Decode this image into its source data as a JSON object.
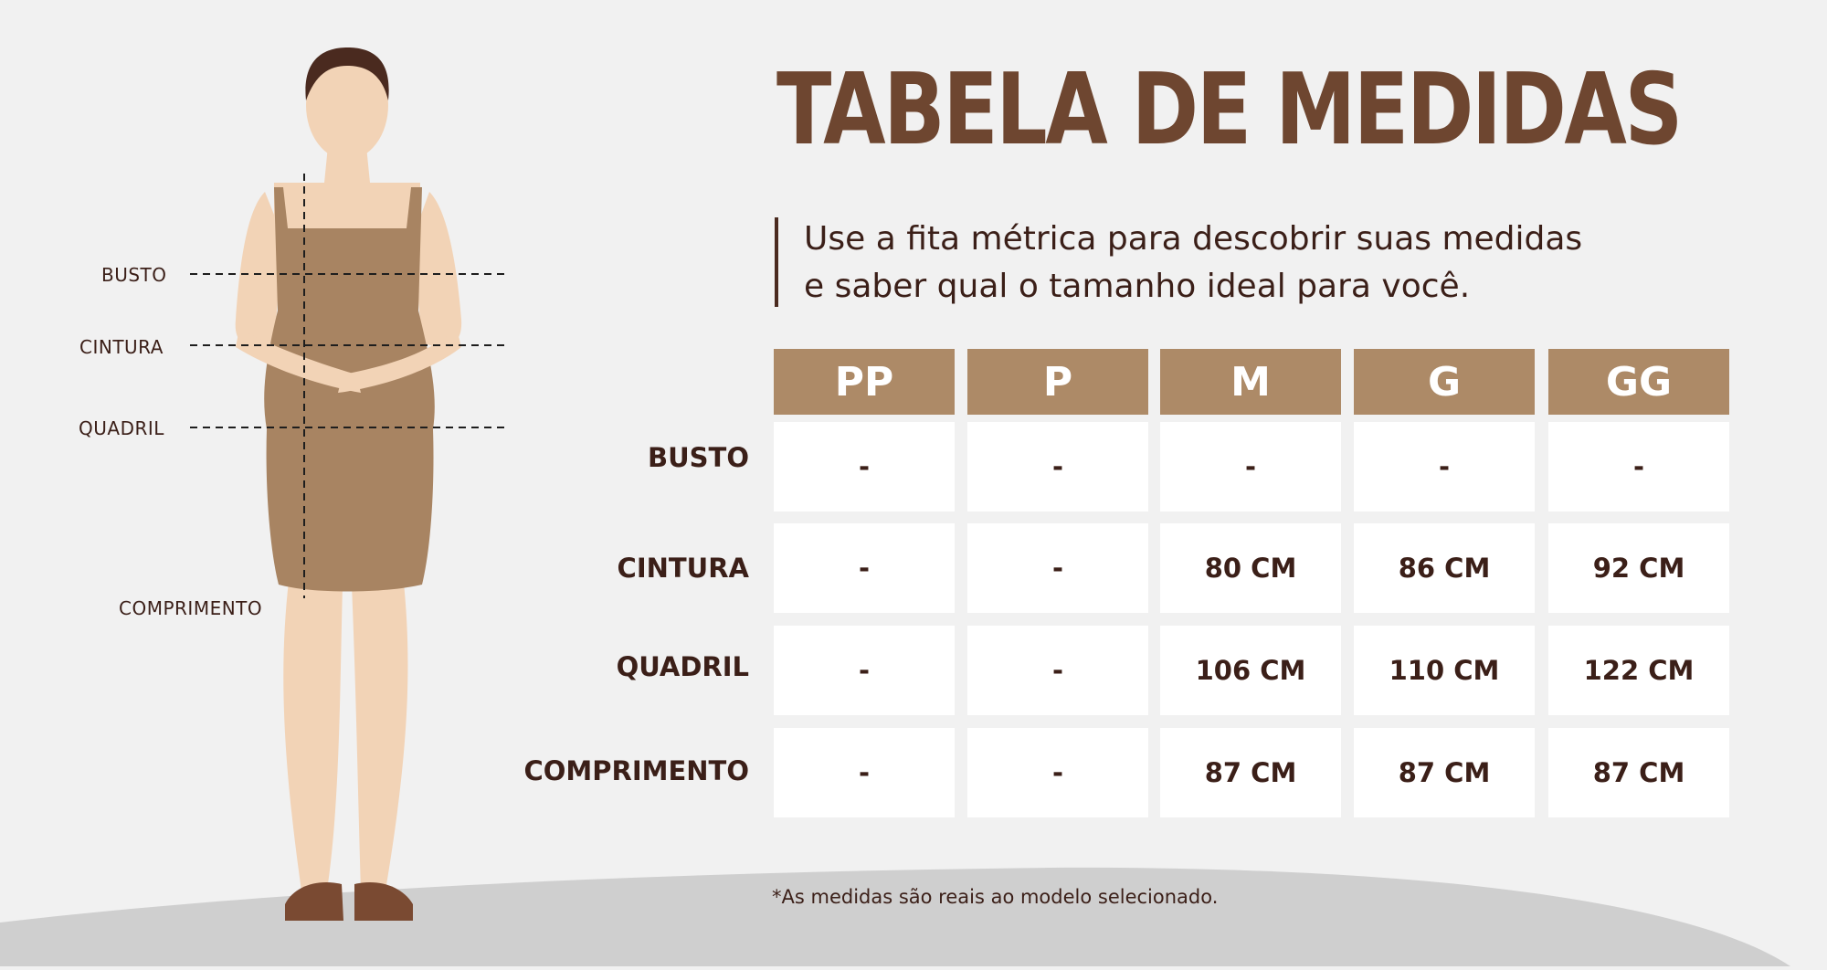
{
  "header": {
    "title": "TABELA DE MEDIDAS",
    "subtitle_line1": "Use a fita métrica para descobrir suas medidas",
    "subtitle_line2": "e saber qual o tamanho ideal para você."
  },
  "figure": {
    "labels": [
      "BUSTO",
      "CINTURA",
      "QUADRIL",
      "COMPRIMENTO"
    ]
  },
  "table": {
    "sizes": [
      "PP",
      "P",
      "M",
      "G",
      "GG"
    ],
    "rows": [
      {
        "label": "BUSTO",
        "values": [
          "-",
          "-",
          "-",
          "-",
          "-"
        ]
      },
      {
        "label": "CINTURA",
        "values": [
          "-",
          "-",
          "80 CM",
          "86 CM",
          "92 CM"
        ]
      },
      {
        "label": "QUADRIL",
        "values": [
          "-",
          "-",
          "106 CM",
          "110 CM",
          "122 CM"
        ]
      },
      {
        "label": "COMPRIMENTO",
        "values": [
          "-",
          "-",
          "87 CM",
          "87 CM",
          "87 CM"
        ]
      }
    ]
  },
  "footnote": "*As medidas são reais ao modelo selecionado.",
  "colors": {
    "background": "#f1f1f1",
    "ground": "#cfcfcf",
    "title": "#6e4630",
    "header_cell": "#ad8a67",
    "text": "#3b1f18",
    "dress": "#a88462",
    "skin": "#f2d3b6"
  }
}
